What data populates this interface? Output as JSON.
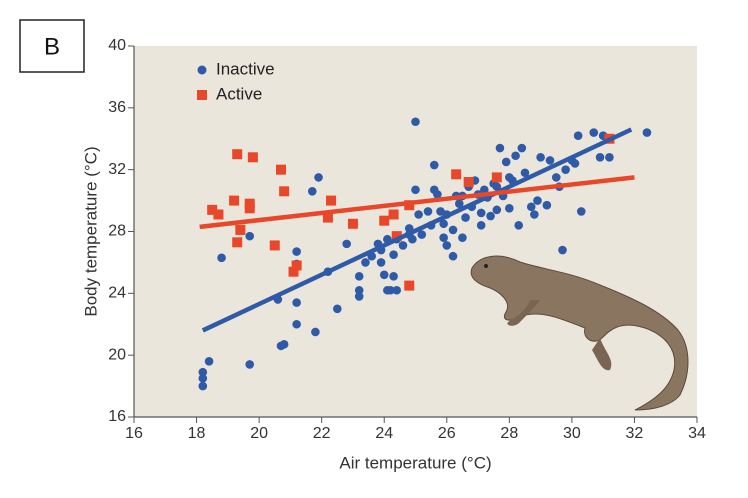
{
  "panel_label": "B",
  "chart_data": {
    "type": "scatter",
    "x_label": "Air temperature (°C)",
    "y_label": "Body temperature (°C)",
    "xlim": [
      16,
      34
    ],
    "xticks": [
      16,
      18,
      20,
      22,
      24,
      26,
      28,
      30,
      32,
      34
    ],
    "ylim": [
      16,
      40
    ],
    "yticks": [
      16,
      20,
      24,
      28,
      32,
      36,
      40
    ],
    "grid": false,
    "legend": "upper left",
    "series": [
      {
        "name": "Inactive",
        "color": "#2f5aa8",
        "marker": "circle",
        "x": [
          18.2,
          18.2,
          18.2,
          18.4,
          18.8,
          19.7,
          19.7,
          20.6,
          20.7,
          20.8,
          21.2,
          21.2,
          21.2,
          21.2,
          21.7,
          21.8,
          21.9,
          22.2,
          22.5,
          22.8,
          23.2,
          23.2,
          23.2,
          23.4,
          23.6,
          23.8,
          23.9,
          23.9,
          24.0,
          24.1,
          24.1,
          24.2,
          24.3,
          24.3,
          24.4,
          24.4,
          24.6,
          24.8,
          24.8,
          24.9,
          25.0,
          25.0,
          25.1,
          25.2,
          25.4,
          25.5,
          25.6,
          25.6,
          25.7,
          25.8,
          25.9,
          25.9,
          26.0,
          26.0,
          26.2,
          26.2,
          26.3,
          26.4,
          26.5,
          26.5,
          26.6,
          26.7,
          26.8,
          26.9,
          27.0,
          27.1,
          27.1,
          27.2,
          27.3,
          27.4,
          27.5,
          27.6,
          27.6,
          27.7,
          27.8,
          27.9,
          28.0,
          28.0,
          28.1,
          28.2,
          28.3,
          28.4,
          28.5,
          28.7,
          28.8,
          28.9,
          29.0,
          29.2,
          29.3,
          29.5,
          29.6,
          29.7,
          29.8,
          30.0,
          30.1,
          30.2,
          30.3,
          30.7,
          30.9,
          31.0,
          31.2,
          32.4
        ],
        "values": [
          18.9,
          18.5,
          18.0,
          19.6,
          26.3,
          27.7,
          19.4,
          23.6,
          20.6,
          20.7,
          26.7,
          25.9,
          23.4,
          22.0,
          30.6,
          21.5,
          31.5,
          25.4,
          23.0,
          27.2,
          24.2,
          25.1,
          23.8,
          26.0,
          26.4,
          27.2,
          26.8,
          26.0,
          25.2,
          24.2,
          27.5,
          24.2,
          26.5,
          25.1,
          24.2,
          27.5,
          27.1,
          27.8,
          28.2,
          27.5,
          35.1,
          30.7,
          29.1,
          27.8,
          29.3,
          28.4,
          30.7,
          32.3,
          30.4,
          29.3,
          27.6,
          28.5,
          27.1,
          29.1,
          28.1,
          26.4,
          30.3,
          29.8,
          30.3,
          27.6,
          28.9,
          30.9,
          29.6,
          31.3,
          30.4,
          29.2,
          28.4,
          30.7,
          30.2,
          29.0,
          31.1,
          29.4,
          30.9,
          33.4,
          30.3,
          32.5,
          31.5,
          29.5,
          31.3,
          32.9,
          28.4,
          33.4,
          31.8,
          29.6,
          29.1,
          30.0,
          32.8,
          29.7,
          32.6,
          31.5,
          30.9,
          26.8,
          32.0,
          32.6,
          32.4,
          34.2,
          29.3,
          34.4,
          32.8,
          34.2,
          32.8,
          34.4
        ],
        "fit_x": [
          18.2,
          31.9
        ],
        "fit_y": [
          21.6,
          34.6
        ]
      },
      {
        "name": "Active",
        "color": "#e8472a",
        "marker": "square",
        "x": [
          18.5,
          18.7,
          19.3,
          19.2,
          19.3,
          19.4,
          19.7,
          19.7,
          19.8,
          20.5,
          20.7,
          20.8,
          21.1,
          21.2,
          22.2,
          22.3,
          23.0,
          24.0,
          24.3,
          24.4,
          24.8,
          24.8,
          26.3,
          26.7,
          27.6,
          31.2
        ],
        "values": [
          29.4,
          29.1,
          33.0,
          30.0,
          27.3,
          28.1,
          29.5,
          29.8,
          32.8,
          27.1,
          32.0,
          30.6,
          25.4,
          25.8,
          28.9,
          30.0,
          28.5,
          28.7,
          29.1,
          27.7,
          29.7,
          24.5,
          31.7,
          31.2,
          31.5,
          34.0
        ],
        "fit_x": [
          18.1,
          32.0
        ],
        "fit_y": [
          28.3,
          31.5
        ]
      }
    ]
  }
}
